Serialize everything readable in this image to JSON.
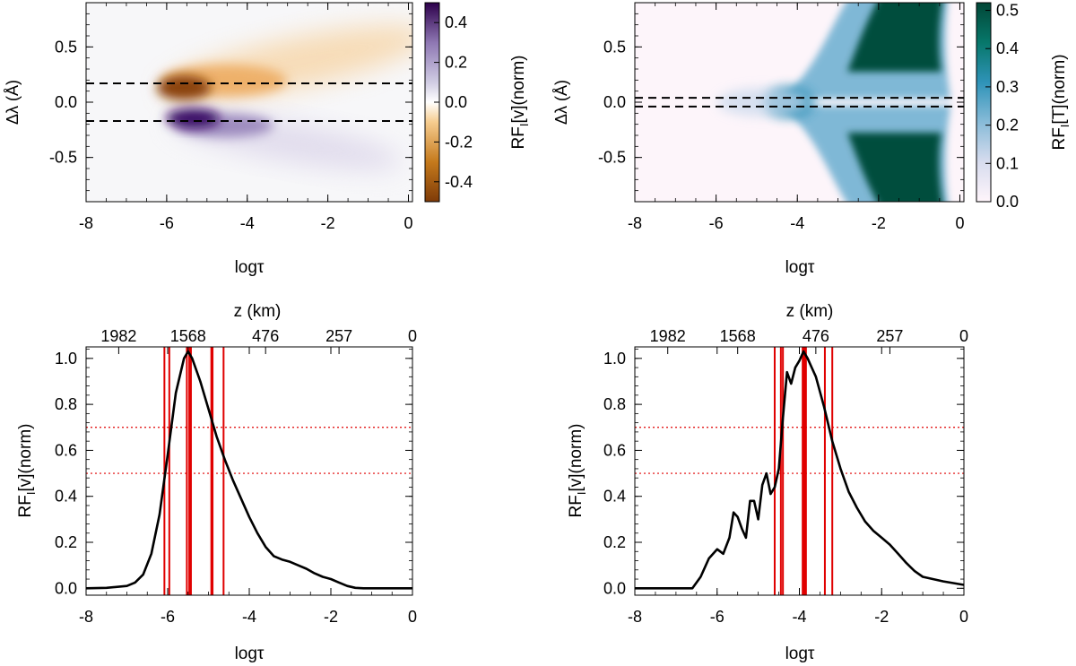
{
  "chart_data": [
    {
      "type": "heatmap",
      "panel": "top-left",
      "xlabel": "logτ",
      "ylabel": "Δλ (Å)",
      "xlim": [
        -8,
        0.1
      ],
      "ylim": [
        -0.9,
        0.9
      ],
      "xticks": [
        -8,
        -6,
        -4,
        -2,
        0
      ],
      "xtick_labels": [
        "-8",
        "-6",
        "-4",
        "-2",
        "0"
      ],
      "yticks": [
        0.5,
        0.0,
        -0.5
      ],
      "ytick_labels": [
        "0.5",
        "0.0",
        "-0.5"
      ],
      "dashed_lines_y": [
        0.17,
        -0.17
      ],
      "features": [
        {
          "name": "orange lobe",
          "sign": "negative",
          "peak_x": -5.4,
          "peak_y": 0.17,
          "peak_value": -0.5,
          "tail_to_x": -1.0
        },
        {
          "name": "purple lobe",
          "sign": "positive",
          "peak_x": -5.1,
          "peak_y": -0.17,
          "peak_value": 0.5,
          "tail_to_x": -1.0
        }
      ],
      "colorbar": {
        "label": "RF_I[v](norm)",
        "label_main": "RF",
        "label_sub": "I",
        "label_rest": "[v](norm)",
        "range": [
          -0.5,
          0.5
        ],
        "ticks": [
          0.4,
          0.2,
          0.0,
          -0.2,
          -0.4
        ],
        "tick_labels": [
          "0.4",
          "0.2",
          "0.0",
          "-0.2",
          "-0.4"
        ],
        "colormap": "diverging orange-white-purple"
      }
    },
    {
      "type": "heatmap",
      "panel": "top-right",
      "xlabel": "logτ",
      "ylabel": "Δλ (Å)",
      "xlim": [
        -8,
        0.1
      ],
      "ylim": [
        -0.9,
        0.9
      ],
      "xticks": [
        -8,
        -6,
        -4,
        -2,
        0
      ],
      "xtick_labels": [
        "-8",
        "-6",
        "-4",
        "-2",
        "0"
      ],
      "yticks": [
        0.5,
        0.0,
        -0.5
      ],
      "ytick_labels": [
        "0.5",
        "0.0",
        "-0.5"
      ],
      "dashed_lines_y": [
        0.04,
        -0.04
      ],
      "features": [
        {
          "name": "upper wing",
          "from_x": -4.0,
          "to_x": 0.0,
          "value": 0.5
        },
        {
          "name": "lower wing",
          "from_x": -4.0,
          "to_x": 0.0,
          "value": 0.5
        },
        {
          "name": "core",
          "x": -3.9,
          "y": 0.0,
          "value": 0.3
        }
      ],
      "colorbar": {
        "label": "RF_I[T](norm)",
        "label_main": "RF",
        "label_sub": "I",
        "label_rest": "[T](norm)",
        "range": [
          0.0,
          0.52
        ],
        "ticks": [
          0.5,
          0.4,
          0.3,
          0.2,
          0.1,
          0.0
        ],
        "tick_labels": [
          "0.5",
          "0.4",
          "0.3",
          "0.2",
          "0.1",
          "0.0"
        ],
        "colormap": "white-blue-darkgreen"
      }
    },
    {
      "type": "line",
      "panel": "bottom-left",
      "xlabel": "logτ",
      "ylabel": "RF_I[v](norm)",
      "ylabel_main": "RF",
      "ylabel_sub": "I",
      "ylabel_rest": "[v](norm)",
      "top_axis_label": "z (km)",
      "top_tick_labels": [
        "1982",
        "1568",
        "476",
        "257",
        "0"
      ],
      "top_tick_positions_logtau": [
        -7.2,
        -5.5,
        -3.6,
        -1.8,
        0
      ],
      "xlim": [
        -8,
        0
      ],
      "ylim": [
        -0.03,
        1.05
      ],
      "xticks": [
        -8,
        -6,
        -4,
        -2,
        0
      ],
      "xtick_labels": [
        "-8",
        "-6",
        "-4",
        "-2",
        "0"
      ],
      "yticks": [
        0.0,
        0.2,
        0.4,
        0.6,
        0.8,
        1.0
      ],
      "ytick_labels": [
        "0.0",
        "0.2",
        "0.4",
        "0.6",
        "0.8",
        "1.0"
      ],
      "hlines_dotted": [
        0.7,
        0.5
      ],
      "vlines": [
        -6.08,
        -5.96,
        -5.53,
        -5.47,
        -5.43,
        -4.93,
        -4.9,
        -4.63
      ],
      "series": [
        {
          "name": "RF_I[v]",
          "x": [
            -8,
            -7.5,
            -7.0,
            -6.8,
            -6.6,
            -6.4,
            -6.2,
            -6.0,
            -5.8,
            -5.6,
            -5.5,
            -5.4,
            -5.2,
            -5.0,
            -4.8,
            -4.6,
            -4.4,
            -4.2,
            -4.0,
            -3.8,
            -3.6,
            -3.4,
            -3.2,
            -3.0,
            -2.8,
            -2.6,
            -2.4,
            -2.2,
            -2.0,
            -1.8,
            -1.6,
            -1.4,
            -1.2,
            -1.0,
            -0.5,
            0
          ],
          "y": [
            0.0,
            0.002,
            0.01,
            0.025,
            0.06,
            0.15,
            0.32,
            0.58,
            0.85,
            1.0,
            1.03,
            1.0,
            0.9,
            0.78,
            0.66,
            0.56,
            0.47,
            0.39,
            0.31,
            0.24,
            0.18,
            0.14,
            0.125,
            0.115,
            0.1,
            0.085,
            0.065,
            0.05,
            0.04,
            0.025,
            0.01,
            0.002,
            0.0,
            0.0,
            0.0,
            0.0
          ]
        }
      ]
    },
    {
      "type": "line",
      "panel": "bottom-right",
      "xlabel": "logτ",
      "ylabel": "RF_I[v](norm)",
      "ylabel_main": "RF",
      "ylabel_sub": "I",
      "ylabel_rest": "[v](norm)",
      "top_axis_label": "z (km)",
      "top_tick_labels": [
        "1982",
        "1568",
        "476",
        "257",
        "0"
      ],
      "top_tick_positions_logtau": [
        -7.2,
        -5.5,
        -3.6,
        -1.8,
        0
      ],
      "xlim": [
        -8,
        0
      ],
      "ylim": [
        -0.03,
        1.05
      ],
      "xticks": [
        -8,
        -6,
        -4,
        -2,
        0
      ],
      "xtick_labels": [
        "-8",
        "-6",
        "-4",
        "-2",
        "0"
      ],
      "yticks": [
        0.0,
        0.2,
        0.4,
        0.6,
        0.8,
        1.0
      ],
      "ytick_labels": [
        "0.0",
        "0.2",
        "0.4",
        "0.6",
        "0.8",
        "1.0"
      ],
      "hlines_dotted": [
        0.7,
        0.5
      ],
      "vlines": [
        -4.6,
        -4.45,
        -4.4,
        -3.92,
        -3.88,
        -3.84,
        -3.38,
        -3.2
      ],
      "series": [
        {
          "name": "RF_I[v]",
          "x": [
            -8,
            -7.0,
            -6.6,
            -6.4,
            -6.2,
            -6.0,
            -5.85,
            -5.7,
            -5.6,
            -5.5,
            -5.4,
            -5.3,
            -5.2,
            -5.1,
            -5.0,
            -4.9,
            -4.8,
            -4.7,
            -4.6,
            -4.5,
            -4.4,
            -4.3,
            -4.2,
            -4.1,
            -4.0,
            -3.9,
            -3.8,
            -3.7,
            -3.6,
            -3.4,
            -3.2,
            -3.0,
            -2.8,
            -2.6,
            -2.4,
            -2.2,
            -2.0,
            -1.8,
            -1.6,
            -1.4,
            -1.2,
            -1.0,
            -0.5,
            0
          ],
          "y": [
            0.0,
            0.0,
            0.0,
            0.05,
            0.13,
            0.17,
            0.15,
            0.22,
            0.33,
            0.31,
            0.26,
            0.22,
            0.38,
            0.38,
            0.3,
            0.45,
            0.5,
            0.41,
            0.44,
            0.52,
            0.74,
            0.94,
            0.89,
            0.96,
            0.99,
            1.03,
            1.0,
            0.96,
            0.92,
            0.79,
            0.64,
            0.52,
            0.42,
            0.35,
            0.29,
            0.25,
            0.22,
            0.19,
            0.15,
            0.11,
            0.075,
            0.05,
            0.03,
            0.015
          ]
        }
      ]
    }
  ]
}
